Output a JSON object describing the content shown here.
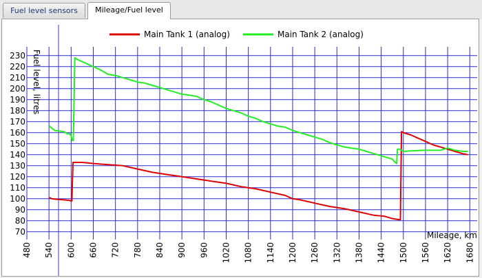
{
  "tabs": [
    {
      "label": "Fuel level sensors",
      "active": false
    },
    {
      "label": "Mileage/Fuel level",
      "active": true
    }
  ],
  "chart_data": {
    "type": "line",
    "xlabel": "Mileage, km",
    "ylabel": "Fuel level, litres",
    "xlim": [
      480,
      1700
    ],
    "ylim": [
      63,
      238
    ],
    "x_ticks": [
      480,
      540,
      600,
      660,
      720,
      780,
      840,
      900,
      960,
      1020,
      1080,
      1140,
      1200,
      1260,
      1320,
      1380,
      1440,
      1500,
      1560,
      1620,
      1680
    ],
    "y_ticks": [
      70,
      80,
      90,
      100,
      110,
      120,
      130,
      140,
      150,
      160,
      170,
      180,
      190,
      200,
      210,
      220,
      230
    ],
    "grid": true,
    "legend": "top-center",
    "series": [
      {
        "name": "Main Tank 1 (analog)",
        "color": "#dd0000",
        "points": [
          [
            541,
            101
          ],
          [
            547,
            100
          ],
          [
            560,
            99.5
          ],
          [
            580,
            99
          ],
          [
            595,
            98.5
          ],
          [
            600,
            98
          ],
          [
            602,
            98
          ],
          [
            605,
            133
          ],
          [
            630,
            133
          ],
          [
            660,
            132
          ],
          [
            700,
            131
          ],
          [
            740,
            130
          ],
          [
            780,
            127
          ],
          [
            820,
            124
          ],
          [
            860,
            122
          ],
          [
            900,
            120
          ],
          [
            940,
            118
          ],
          [
            980,
            116
          ],
          [
            1020,
            114
          ],
          [
            1060,
            111
          ],
          [
            1100,
            109
          ],
          [
            1140,
            106
          ],
          [
            1180,
            103
          ],
          [
            1200,
            100
          ],
          [
            1220,
            99
          ],
          [
            1260,
            96
          ],
          [
            1300,
            93
          ],
          [
            1340,
            91
          ],
          [
            1380,
            88
          ],
          [
            1420,
            85
          ],
          [
            1450,
            84
          ],
          [
            1470,
            82
          ],
          [
            1489,
            81
          ],
          [
            1492,
            81
          ],
          [
            1495,
            161
          ],
          [
            1500,
            160
          ],
          [
            1520,
            158
          ],
          [
            1540,
            155
          ],
          [
            1560,
            152
          ],
          [
            1580,
            149
          ],
          [
            1600,
            147
          ],
          [
            1620,
            145
          ],
          [
            1640,
            143
          ],
          [
            1660,
            141
          ],
          [
            1675,
            140
          ]
        ]
      },
      {
        "name": "Main Tank 2 (analog)",
        "color": "#22ee22",
        "points": [
          [
            541,
            166
          ],
          [
            548,
            164
          ],
          [
            556,
            162
          ],
          [
            580,
            161
          ],
          [
            590,
            159
          ],
          [
            596,
            159
          ],
          [
            600,
            157
          ],
          [
            603,
            153
          ],
          [
            606,
            153
          ],
          [
            610,
            228
          ],
          [
            620,
            226
          ],
          [
            640,
            223
          ],
          [
            660,
            220
          ],
          [
            680,
            217
          ],
          [
            700,
            213
          ],
          [
            720,
            212
          ],
          [
            740,
            210
          ],
          [
            760,
            208
          ],
          [
            780,
            206
          ],
          [
            800,
            205
          ],
          [
            820,
            203
          ],
          [
            840,
            201
          ],
          [
            860,
            199
          ],
          [
            880,
            197
          ],
          [
            900,
            195
          ],
          [
            920,
            194
          ],
          [
            940,
            193
          ],
          [
            960,
            190
          ],
          [
            980,
            188
          ],
          [
            1000,
            185
          ],
          [
            1020,
            182
          ],
          [
            1040,
            180
          ],
          [
            1060,
            178
          ],
          [
            1080,
            175
          ],
          [
            1100,
            173
          ],
          [
            1120,
            170
          ],
          [
            1140,
            168
          ],
          [
            1160,
            166
          ],
          [
            1180,
            165
          ],
          [
            1200,
            162
          ],
          [
            1220,
            160
          ],
          [
            1240,
            158
          ],
          [
            1260,
            156
          ],
          [
            1280,
            154
          ],
          [
            1300,
            151
          ],
          [
            1320,
            149
          ],
          [
            1340,
            147
          ],
          [
            1360,
            146
          ],
          [
            1380,
            145
          ],
          [
            1400,
            143
          ],
          [
            1420,
            141
          ],
          [
            1440,
            139
          ],
          [
            1460,
            137
          ],
          [
            1470,
            136
          ],
          [
            1478,
            133
          ],
          [
            1482,
            132
          ],
          [
            1484,
            145
          ],
          [
            1490,
            145
          ],
          [
            1500,
            143
          ],
          [
            1520,
            143.5
          ],
          [
            1560,
            144
          ],
          [
            1590,
            144
          ],
          [
            1600,
            144
          ],
          [
            1620,
            146
          ],
          [
            1640,
            144
          ],
          [
            1660,
            143
          ],
          [
            1675,
            143
          ]
        ]
      }
    ]
  }
}
